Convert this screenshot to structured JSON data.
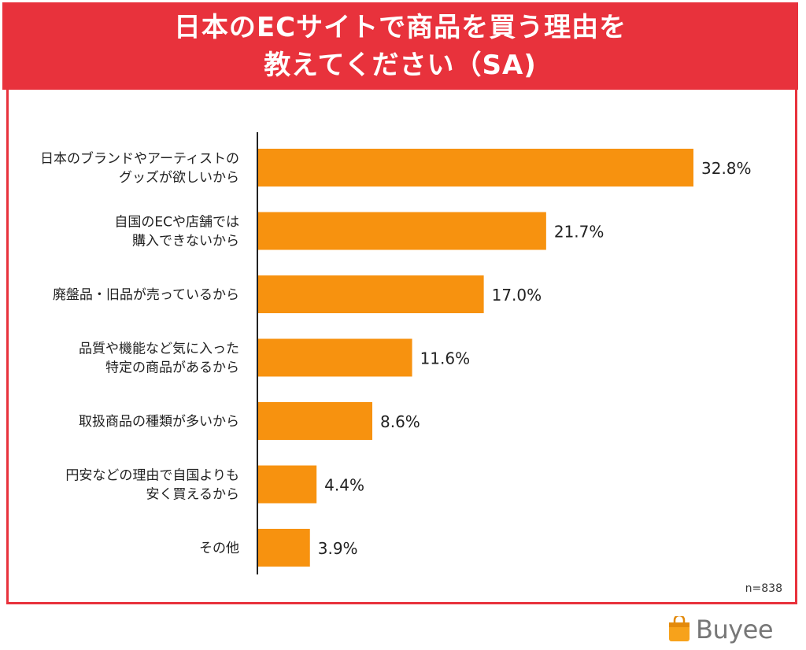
{
  "title": {
    "line1": "日本のECサイトで商品を買う理由を",
    "line2": "教えてください（SA)"
  },
  "sample_size": "n=838",
  "brand": "Buyee",
  "colors": {
    "accent": "#e8323c",
    "bar": "#f7920f"
  },
  "chart_data": {
    "type": "bar",
    "orientation": "horizontal",
    "categories": [
      [
        "日本のブランドやアーティストの",
        "グッズが欲しいから"
      ],
      [
        "自国のECや店舗では",
        "購入できないから"
      ],
      [
        "廃盤品・旧品が売っているから"
      ],
      [
        "品質や機能など気に入った",
        "特定の商品があるから"
      ],
      [
        "取扱商品の種類が多いから"
      ],
      [
        "円安などの理由で自国よりも",
        "安く買えるから"
      ],
      [
        "その他"
      ]
    ],
    "values": [
      32.8,
      21.7,
      17.0,
      11.6,
      8.6,
      4.4,
      3.9
    ],
    "value_labels": [
      "32.8%",
      "21.7%",
      "17.0%",
      "11.6%",
      "8.6%",
      "4.4%",
      "3.9%"
    ],
    "xlim": [
      0,
      35
    ],
    "grid": false,
    "legend": "none"
  }
}
